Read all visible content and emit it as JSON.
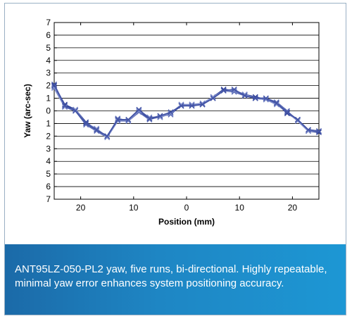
{
  "chart_data": {
    "type": "line",
    "xlabel": "Position (mm)",
    "ylabel": "Yaw (arc-sec)",
    "xlim": [
      -25,
      25
    ],
    "ylim": [
      -7,
      7
    ],
    "x_ticks": [
      -20,
      -10,
      0,
      10,
      20
    ],
    "x_tick_labels": [
      "20",
      "10",
      "0",
      "10",
      "20"
    ],
    "y_ticks": [
      7,
      6,
      5,
      4,
      3,
      2,
      1,
      0,
      -1,
      -2,
      -3,
      -4,
      -5,
      -6,
      -7
    ],
    "y_tick_labels": [
      "7",
      "6",
      "5",
      "4",
      "3",
      "2",
      "1",
      "0",
      "1",
      "2",
      "3",
      "4",
      "5",
      "6",
      "7"
    ],
    "grid": {
      "horizontal": true,
      "vertical": false
    },
    "x": [
      -25,
      -23,
      -21,
      -19,
      -17,
      -15,
      -13,
      -11,
      -9,
      -7,
      -5,
      -3,
      -1,
      1,
      3,
      5,
      7,
      9,
      11,
      13,
      15,
      17,
      19,
      21,
      23,
      25
    ],
    "series": [
      {
        "values": [
          2.0,
          0.4,
          0.1,
          -1.0,
          -1.5,
          -2.0,
          -0.7,
          -0.8,
          0.0,
          -0.6,
          -0.5,
          -0.2,
          0.4,
          0.5,
          0.5,
          1.1,
          1.6,
          1.6,
          1.3,
          1.0,
          0.9,
          0.6,
          -0.1,
          -0.7,
          -1.6,
          -1.6
        ]
      },
      {
        "values": [
          1.9,
          0.3,
          0.0,
          -1.1,
          -1.6,
          -2.1,
          -0.6,
          -0.8,
          -0.1,
          -0.7,
          -0.4,
          -0.3,
          0.5,
          0.4,
          0.6,
          1.0,
          1.6,
          1.5,
          1.2,
          1.0,
          1.0,
          0.7,
          0.0,
          -0.8,
          -1.5,
          -1.6
        ]
      },
      {
        "values": [
          2.0,
          0.5,
          0.1,
          -0.9,
          -1.5,
          -2.0,
          -0.7,
          -0.7,
          0.0,
          -0.6,
          -0.5,
          -0.2,
          0.4,
          0.5,
          0.5,
          1.1,
          1.7,
          1.6,
          1.3,
          1.1,
          0.9,
          0.6,
          -0.2,
          -0.7,
          -1.6,
          -1.7
        ]
      },
      {
        "values": [
          1.8,
          0.3,
          0.1,
          -1.0,
          -1.4,
          -2.1,
          -0.8,
          -0.8,
          0.0,
          -0.5,
          -0.5,
          -0.2,
          0.5,
          0.5,
          0.6,
          1.1,
          1.6,
          1.6,
          1.3,
          1.0,
          0.9,
          0.5,
          -0.1,
          -0.8,
          -1.6,
          -1.6
        ]
      },
      {
        "values": [
          2.1,
          0.4,
          0.0,
          -1.0,
          -1.5,
          -2.0,
          -0.7,
          -0.7,
          0.1,
          -0.6,
          -0.4,
          -0.1,
          0.4,
          0.4,
          0.5,
          1.0,
          1.6,
          1.7,
          1.2,
          1.0,
          1.0,
          0.6,
          -0.1,
          -0.7,
          -1.5,
          -1.6
        ]
      }
    ],
    "line_colors": [
      "#3a4fa8",
      "#5f6fb8",
      "#2c3e96",
      "#7d8ccb",
      "#4455a6"
    ]
  },
  "caption": {
    "text": "ANT95LZ-050-PL2 yaw, five runs, bi-directional. Highly repeatable, minimal yaw error enhances system positioning accuracy."
  },
  "colors": {
    "caption_band_start": "#1b6aa8",
    "caption_band_end": "#1d97d4",
    "card_border": "#9ab0c4"
  }
}
